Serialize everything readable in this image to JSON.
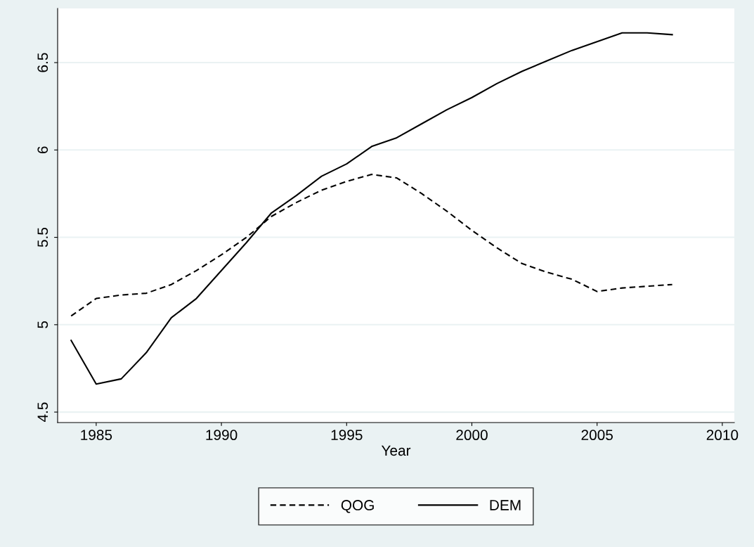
{
  "chart_data": {
    "type": "line",
    "xlabel": "Year",
    "x": [
      1984,
      1985,
      1986,
      1987,
      1988,
      1989,
      1990,
      1991,
      1992,
      1993,
      1994,
      1995,
      1996,
      1997,
      1998,
      1999,
      2000,
      2001,
      2002,
      2003,
      2004,
      2005,
      2006,
      2007,
      2008
    ],
    "series": [
      {
        "name": "QOG",
        "color": "#000000",
        "line_style": "dashed",
        "values": [
          5.05,
          5.15,
          5.17,
          5.18,
          5.23,
          5.31,
          5.4,
          5.5,
          5.62,
          5.7,
          5.77,
          5.82,
          5.86,
          5.84,
          5.75,
          5.65,
          5.54,
          5.44,
          5.35,
          5.3,
          5.26,
          5.19,
          5.21,
          5.22,
          5.23
        ]
      },
      {
        "name": "DEM",
        "color": "#000000",
        "line_style": "solid",
        "values": [
          4.91,
          4.66,
          4.69,
          4.84,
          5.04,
          5.15,
          5.31,
          5.47,
          5.64,
          5.74,
          5.85,
          5.92,
          6.02,
          6.07,
          6.15,
          6.23,
          6.3,
          6.38,
          6.45,
          6.51,
          6.57,
          6.62,
          6.67,
          6.67,
          6.66
        ]
      }
    ],
    "xlim": [
      1983.46,
      2010.48
    ],
    "xticks": [
      1985,
      1990,
      1995,
      2000,
      2005,
      2010
    ],
    "ylim": [
      4.44,
      6.81
    ],
    "yticks": [
      4.5,
      5,
      5.5,
      6,
      6.5
    ],
    "grid": "y",
    "legend": "bottom",
    "marker": "none"
  }
}
